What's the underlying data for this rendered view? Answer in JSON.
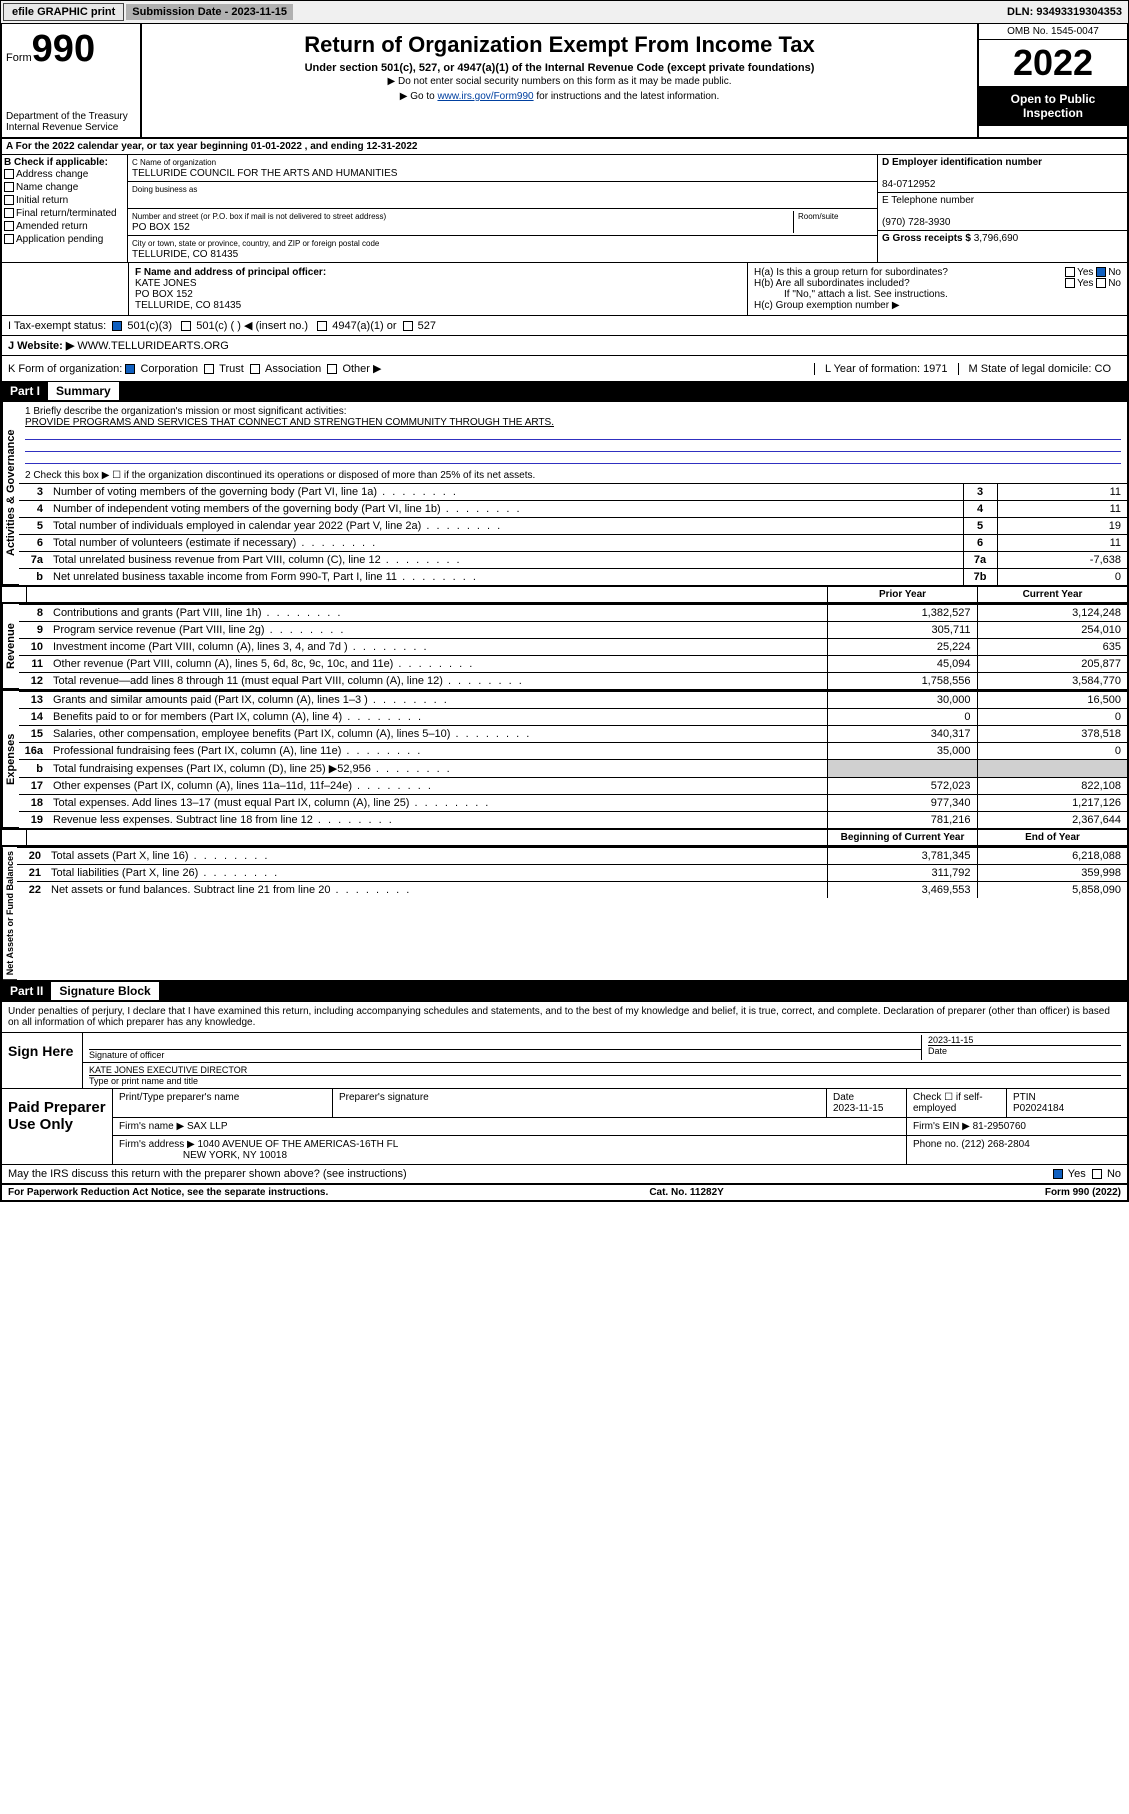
{
  "topbar": {
    "efile": "efile GRAPHIC print",
    "subdate_label": "Submission Date - ",
    "subdate": "2023-11-15",
    "dln_label": "DLN: ",
    "dln": "93493319304353"
  },
  "header": {
    "form_word": "Form",
    "form_num": "990",
    "dept": "Department of the Treasury",
    "irs": "Internal Revenue Service",
    "title": "Return of Organization Exempt From Income Tax",
    "sub": "Under section 501(c), 527, or 4947(a)(1) of the Internal Revenue Code (except private foundations)",
    "note1": "▶ Do not enter social security numbers on this form as it may be made public.",
    "note2_pre": "▶ Go to ",
    "note2_link": "www.irs.gov/Form990",
    "note2_post": " for instructions and the latest information.",
    "omb": "OMB No. 1545-0047",
    "year": "2022",
    "open": "Open to Public Inspection"
  },
  "A": {
    "line": "A For the 2022 calendar year, or tax year beginning ",
    "begin": "01-01-2022",
    "mid": "   , and ending ",
    "end": "12-31-2022"
  },
  "B": {
    "hdr": "B Check if applicable:",
    "opts": [
      "Address change",
      "Name change",
      "Initial return",
      "Final return/terminated",
      "Amended return",
      "Application pending"
    ]
  },
  "C": {
    "namelabel": "C Name of organization",
    "name": "TELLURIDE COUNCIL FOR THE ARTS AND HUMANITIES",
    "dba": "Doing business as",
    "addrlabel": "Number and street (or P.O. box if mail is not delivered to street address)",
    "roomlabel": "Room/suite",
    "addr": "PO BOX 152",
    "citylabel": "City or town, state or province, country, and ZIP or foreign postal code",
    "city": "TELLURIDE, CO  81435"
  },
  "D": {
    "label": "D Employer identification number",
    "val": "84-0712952"
  },
  "E": {
    "label": "E Telephone number",
    "val": "(970) 728-3930"
  },
  "G": {
    "label": "G Gross receipts $ ",
    "val": "3,796,690"
  },
  "F": {
    "label": "F  Name and address of principal officer:",
    "name": "KATE JONES",
    "addr1": "PO BOX 152",
    "addr2": "TELLURIDE, CO  81435"
  },
  "H": {
    "a": "H(a)  Is this a group return for subordinates?",
    "b": "H(b)  Are all subordinates included?",
    "bnote": "If \"No,\" attach a list. See instructions.",
    "c": "H(c)  Group exemption number ▶",
    "yes": "Yes",
    "no": "No"
  },
  "I": {
    "label": "I    Tax-exempt status:",
    "o1": "501(c)(3)",
    "o2": "501(c) (  ) ◀ (insert no.)",
    "o3": "4947(a)(1) or",
    "o4": "527"
  },
  "J": {
    "label": "J    Website: ▶",
    "val": "WWW.TELLURIDEARTS.ORG"
  },
  "K": {
    "label": "K Form of organization:",
    "corp": "Corporation",
    "trust": "Trust",
    "assoc": "Association",
    "other": "Other ▶"
  },
  "L": {
    "label": "L Year of formation: ",
    "val": "1971"
  },
  "M": {
    "label": "M State of legal domicile: ",
    "val": "CO"
  },
  "partI": {
    "hdr": "Part I",
    "title": "Summary"
  },
  "summary": {
    "line1_label": "1   Briefly describe the organization's mission or most significant activities:",
    "line1_text": "PROVIDE PROGRAMS AND SERVICES THAT CONNECT AND STRENGTHEN COMMUNITY THROUGH THE ARTS.",
    "line2": "2   Check this box ▶ ☐  if the organization discontinued its operations or disposed of more than 25% of its net assets.",
    "gov_label": "Activities & Governance",
    "rev_label": "Revenue",
    "exp_label": "Expenses",
    "na_label": "Net Assets or Fund Balances",
    "rows_gov": [
      {
        "n": "3",
        "t": "Number of voting members of the governing body (Part VI, line 1a)",
        "ln": "3",
        "v": "11"
      },
      {
        "n": "4",
        "t": "Number of independent voting members of the governing body (Part VI, line 1b)",
        "ln": "4",
        "v": "11"
      },
      {
        "n": "5",
        "t": "Total number of individuals employed in calendar year 2022 (Part V, line 2a)",
        "ln": "5",
        "v": "19"
      },
      {
        "n": "6",
        "t": "Total number of volunteers (estimate if necessary)",
        "ln": "6",
        "v": "11"
      },
      {
        "n": "7a",
        "t": "Total unrelated business revenue from Part VIII, column (C), line 12",
        "ln": "7a",
        "v": "-7,638"
      },
      {
        "n": "b",
        "t": "Net unrelated business taxable income from Form 990-T, Part I, line 11",
        "ln": "7b",
        "v": "0"
      }
    ],
    "yearhdr_prior": "Prior Year",
    "yearhdr_curr": "Current Year",
    "rows_rev": [
      {
        "n": "8",
        "t": "Contributions and grants (Part VIII, line 1h)",
        "py": "1,382,527",
        "cy": "3,124,248"
      },
      {
        "n": "9",
        "t": "Program service revenue (Part VIII, line 2g)",
        "py": "305,711",
        "cy": "254,010"
      },
      {
        "n": "10",
        "t": "Investment income (Part VIII, column (A), lines 3, 4, and 7d )",
        "py": "25,224",
        "cy": "635"
      },
      {
        "n": "11",
        "t": "Other revenue (Part VIII, column (A), lines 5, 6d, 8c, 9c, 10c, and 11e)",
        "py": "45,094",
        "cy": "205,877"
      },
      {
        "n": "12",
        "t": "Total revenue—add lines 8 through 11 (must equal Part VIII, column (A), line 12)",
        "py": "1,758,556",
        "cy": "3,584,770"
      }
    ],
    "rows_exp": [
      {
        "n": "13",
        "t": "Grants and similar amounts paid (Part IX, column (A), lines 1–3 )",
        "py": "30,000",
        "cy": "16,500"
      },
      {
        "n": "14",
        "t": "Benefits paid to or for members (Part IX, column (A), line 4)",
        "py": "0",
        "cy": "0"
      },
      {
        "n": "15",
        "t": "Salaries, other compensation, employee benefits (Part IX, column (A), lines 5–10)",
        "py": "340,317",
        "cy": "378,518"
      },
      {
        "n": "16a",
        "t": "Professional fundraising fees (Part IX, column (A), line 11e)",
        "py": "35,000",
        "cy": "0"
      },
      {
        "n": "b",
        "t": "Total fundraising expenses (Part IX, column (D), line 25) ▶52,956",
        "py": "",
        "cy": "",
        "shade": true
      },
      {
        "n": "17",
        "t": "Other expenses (Part IX, column (A), lines 11a–11d, 11f–24e)",
        "py": "572,023",
        "cy": "822,108"
      },
      {
        "n": "18",
        "t": "Total expenses. Add lines 13–17 (must equal Part IX, column (A), line 25)",
        "py": "977,340",
        "cy": "1,217,126"
      },
      {
        "n": "19",
        "t": "Revenue less expenses. Subtract line 18 from line 12",
        "py": "781,216",
        "cy": "2,367,644"
      }
    ],
    "yearhdr_beg": "Beginning of Current Year",
    "yearhdr_end": "End of Year",
    "rows_na": [
      {
        "n": "20",
        "t": "Total assets (Part X, line 16)",
        "py": "3,781,345",
        "cy": "6,218,088"
      },
      {
        "n": "21",
        "t": "Total liabilities (Part X, line 26)",
        "py": "311,792",
        "cy": "359,998"
      },
      {
        "n": "22",
        "t": "Net assets or fund balances. Subtract line 21 from line 20",
        "py": "3,469,553",
        "cy": "5,858,090"
      }
    ]
  },
  "partII": {
    "hdr": "Part II",
    "title": "Signature Block"
  },
  "sig": {
    "decl": "Under penalties of perjury, I declare that I have examined this return, including accompanying schedules and statements, and to the best of my knowledge and belief, it is true, correct, and complete. Declaration of preparer (other than officer) is based on all information of which preparer has any knowledge.",
    "signhere": "Sign Here",
    "sigoff": "Signature of officer",
    "date": "Date",
    "sigdate": "2023-11-15",
    "name": "KATE JONES  EXECUTIVE DIRECTOR",
    "nametype": "Type or print name and title"
  },
  "prep": {
    "label": "Paid Preparer Use Only",
    "h_name": "Print/Type preparer's name",
    "h_sig": "Preparer's signature",
    "h_date": "Date",
    "h_date_v": "2023-11-15",
    "h_check": "Check ☐ if self-employed",
    "h_ptin": "PTIN",
    "h_ptin_v": "P02024184",
    "firm_label": "Firm's name    ▶",
    "firm": "SAX LLP",
    "ein_label": "Firm's EIN ▶",
    "ein": "81-2950760",
    "addr_label": "Firm's address ▶",
    "addr1": "1040 AVENUE OF THE AMERICAS-16TH FL",
    "addr2": "NEW YORK, NY  10018",
    "phone_label": "Phone no. ",
    "phone": "(212) 268-2804"
  },
  "may": {
    "text": "May the IRS discuss this return with the preparer shown above? (see instructions)",
    "yes": "Yes",
    "no": "No"
  },
  "footer": {
    "pra": "For Paperwork Reduction Act Notice, see the separate instructions.",
    "cat": "Cat. No. 11282Y",
    "form": "Form 990 (2022)"
  }
}
